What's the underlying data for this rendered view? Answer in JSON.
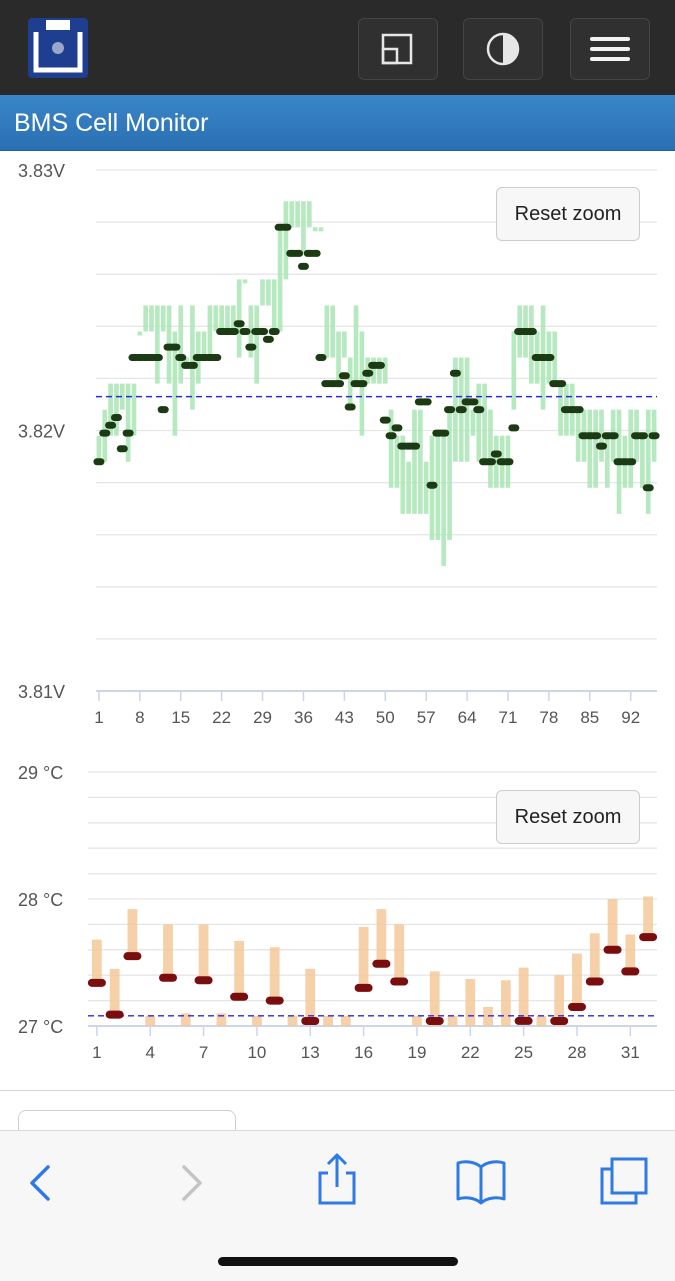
{
  "header": {
    "title": "BMS Cell Monitor"
  },
  "toolbar": {
    "logo_icon": "bms-logo-icon",
    "buttons": [
      {
        "name": "window-button",
        "icon": "window-icon"
      },
      {
        "name": "contrast-button",
        "icon": "contrast-icon"
      },
      {
        "name": "menu-button",
        "icon": "hamburger-menu-icon"
      }
    ]
  },
  "colors": {
    "voltage_range": "#a9e5b4",
    "voltage_marker": "#1c3a14",
    "temp_range": "#f3c89a",
    "temp_marker": "#7a0d0d",
    "reference_line": "#2a2ad8",
    "title_bar": "#2f78bb"
  },
  "chart_data": [
    {
      "type": "range-bar",
      "unit": "V",
      "ylim": [
        3.81,
        3.83
      ],
      "y_ticks": [
        "3.83V",
        "3.82V",
        "3.81V"
      ],
      "x_ticks": [
        "1",
        "8",
        "15",
        "22",
        "29",
        "36",
        "43",
        "50",
        "57",
        "64",
        "71",
        "78",
        "85",
        "92"
      ],
      "cell_count": 96,
      "reference_value": 3.8213,
      "reset_label": "Reset zoom",
      "min": [
        3.8188,
        3.8188,
        3.8198,
        3.8198,
        3.8208,
        3.8188,
        3.8198,
        3.8238,
        3.8238,
        3.8238,
        3.8218,
        3.8238,
        3.8218,
        3.8198,
        3.8218,
        3.8228,
        3.8208,
        3.8218,
        3.8228,
        3.8228,
        3.8238,
        3.8238,
        3.8238,
        3.8238,
        3.8228,
        3.8258,
        3.8228,
        3.8218,
        3.8248,
        3.8248,
        3.8238,
        3.8238,
        3.8258,
        3.8278,
        3.8278,
        3.8268,
        3.8278,
        3.8278,
        3.8278,
        3.8228,
        3.8228,
        3.8218,
        3.8228,
        3.8208,
        3.8218,
        3.8198,
        3.8218,
        3.8218,
        3.8218,
        3.8218,
        3.8178,
        3.8178,
        3.8168,
        3.8168,
        3.8168,
        3.8168,
        3.8168,
        3.8158,
        3.8158,
        3.8148,
        3.8158,
        3.8188,
        3.8188,
        3.8188,
        3.8198,
        3.8188,
        3.8188,
        3.8178,
        3.8178,
        3.8178,
        3.8178,
        3.8208,
        3.8228,
        3.8228,
        3.8218,
        3.8218,
        3.8208,
        3.8218,
        3.8218,
        3.8198,
        3.8198,
        3.8198,
        3.8188,
        3.8188,
        3.8178,
        3.8178,
        3.8188,
        3.8178,
        3.8188,
        3.8168,
        3.8178,
        3.8178,
        3.8188,
        3.8178,
        3.8168,
        3.8188
      ],
      "max": [
        3.8198,
        3.8208,
        3.8218,
        3.8218,
        3.8218,
        3.8218,
        3.8218,
        3.8238,
        3.8248,
        3.8248,
        3.8248,
        3.8248,
        3.8248,
        3.8238,
        3.8248,
        3.8228,
        3.8248,
        3.8238,
        3.8238,
        3.8248,
        3.8248,
        3.8248,
        3.8248,
        3.8248,
        3.8258,
        3.8258,
        3.8248,
        3.8248,
        3.8258,
        3.8258,
        3.8258,
        3.8278,
        3.8288,
        3.8288,
        3.8288,
        3.8288,
        3.8288,
        3.8278,
        3.8278,
        3.8248,
        3.8248,
        3.8238,
        3.8238,
        3.8228,
        3.8248,
        3.8238,
        3.8228,
        3.8228,
        3.8228,
        3.8228,
        3.8208,
        3.8198,
        3.8198,
        3.8188,
        3.8208,
        3.8208,
        3.8188,
        3.8198,
        3.8198,
        3.8198,
        3.8208,
        3.8228,
        3.8228,
        3.8228,
        3.8208,
        3.8218,
        3.8218,
        3.8208,
        3.8198,
        3.8198,
        3.8198,
        3.8238,
        3.8248,
        3.8248,
        3.8248,
        3.8238,
        3.8248,
        3.8238,
        3.8238,
        3.8218,
        3.8218,
        3.8218,
        3.8208,
        3.8208,
        3.8208,
        3.8208,
        3.8208,
        3.8198,
        3.8208,
        3.8208,
        3.8198,
        3.8208,
        3.8208,
        3.8198,
        3.8208,
        3.8208
      ],
      "value": [
        3.8188,
        3.8199,
        3.8202,
        3.8205,
        3.8193,
        3.8199,
        3.8228,
        3.8228,
        3.8228,
        3.8228,
        3.8228,
        3.8208,
        3.8232,
        3.8232,
        3.8228,
        3.8225,
        3.8225,
        3.8228,
        3.8228,
        3.8228,
        3.8228,
        3.8238,
        3.8238,
        3.8238,
        3.8241,
        3.8238,
        3.8232,
        3.8238,
        3.8238,
        3.8235,
        3.8238,
        3.8278,
        3.8278,
        3.8268,
        3.8268,
        3.8263,
        3.8268,
        3.8268,
        3.8228,
        3.8218,
        3.8218,
        3.8218,
        3.8221,
        3.8209,
        3.8218,
        3.8218,
        3.8222,
        3.8225,
        3.8225,
        3.8204,
        3.8198,
        3.8201,
        3.8194,
        3.8194,
        3.8194,
        3.8211,
        3.8211,
        3.8179,
        3.8199,
        3.8199,
        3.8208,
        3.8222,
        3.8208,
        3.8211,
        3.8211,
        3.8208,
        3.8188,
        3.8188,
        3.8191,
        3.8188,
        3.8188,
        3.8201,
        3.8238,
        3.8238,
        3.8238,
        3.8228,
        3.8228,
        3.8228,
        3.8218,
        3.8218,
        3.8208,
        3.8208,
        3.8208,
        3.8198,
        3.8198,
        3.8198,
        3.8194,
        3.8198,
        3.8198,
        3.8188,
        3.8188,
        3.8188,
        3.8198,
        3.8198,
        3.8178,
        3.8198
      ]
    },
    {
      "type": "range-bar",
      "unit": "°C",
      "ylim": [
        27,
        29
      ],
      "y_ticks": [
        "29 °C",
        "28 °C",
        "27 °C"
      ],
      "x_ticks": [
        "1",
        "4",
        "7",
        "10",
        "13",
        "16",
        "19",
        "22",
        "25",
        "28",
        "31"
      ],
      "sensor_count": 32,
      "reference_value": 27.08,
      "reset_label": "Reset zoom",
      "min": [
        27.34,
        27.09,
        27.55,
        27.0,
        27.38,
        27.0,
        27.36,
        27.0,
        27.23,
        27.0,
        27.2,
        27.0,
        27.03,
        27.03,
        27.0,
        27.3,
        27.49,
        27.35,
        27.0,
        27.0,
        27.0,
        27.0,
        27.0,
        27.0,
        27.04,
        27.0,
        27.0,
        27.15,
        27.35,
        27.6,
        27.43,
        27.7
      ],
      "max": [
        27.68,
        27.45,
        27.92,
        27.08,
        27.8,
        27.1,
        27.8,
        27.1,
        27.67,
        27.0,
        27.62,
        27.0,
        27.45,
        27.06,
        27.0,
        27.78,
        27.92,
        27.8,
        27.0,
        27.43,
        27.0,
        27.37,
        27.15,
        27.36,
        27.46,
        27.0,
        27.4,
        27.57,
        27.73,
        28.0,
        27.72,
        28.02
      ],
      "value": [
        27.34,
        27.09,
        27.55,
        null,
        27.38,
        null,
        27.36,
        null,
        27.23,
        null,
        27.2,
        null,
        27.03,
        null,
        null,
        27.3,
        27.49,
        27.35,
        null,
        27.03,
        null,
        null,
        null,
        null,
        27.04,
        null,
        27.02,
        27.15,
        27.35,
        27.6,
        27.43,
        27.7
      ]
    }
  ]
}
